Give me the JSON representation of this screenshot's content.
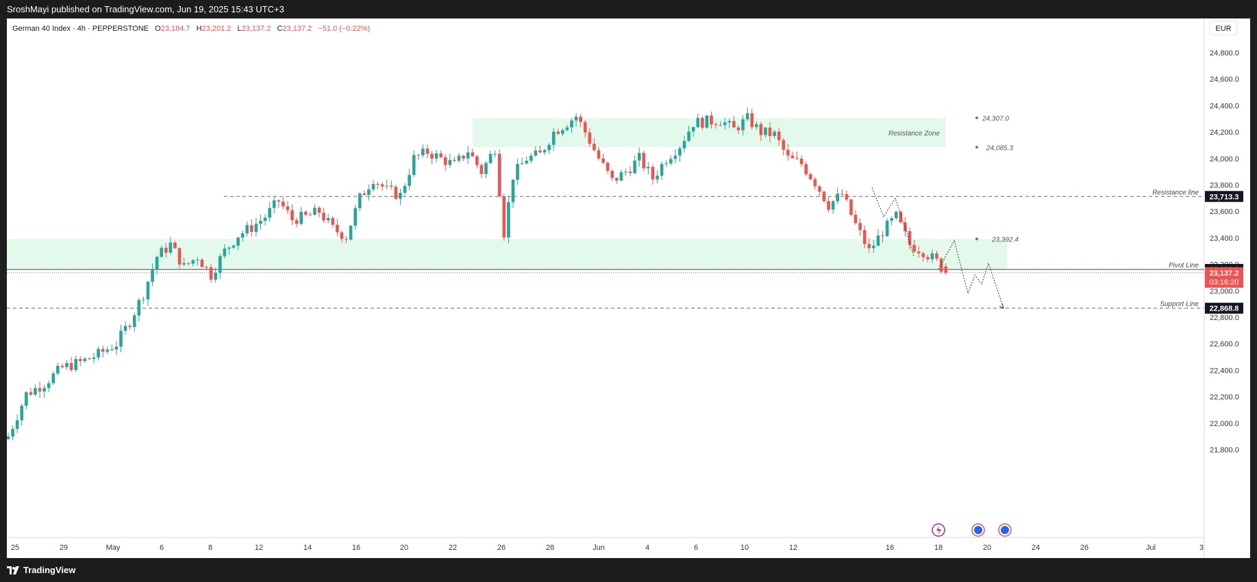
{
  "header": {
    "publisher": "SroshMayi published on TradingView.com, Jun 19, 2025 15:43 UTC+3"
  },
  "footer": {
    "brand": "TradingView"
  },
  "legend": {
    "symbol": "German 40 Index · 4h · PEPPERSTONE",
    "open_label": "O",
    "open": "23,184.7",
    "high_label": "H",
    "high": "23,201.2",
    "low_label": "L",
    "low": "23,137.2",
    "close_label": "C",
    "close": "23,137.2",
    "change": "−51.0 (−0.22%)"
  },
  "currency": "EUR",
  "colors": {
    "up": "#26a69a",
    "down": "#ef5350",
    "zone": "#e3f9ec",
    "axis_text": "#333333"
  },
  "chart_data": {
    "type": "candlestick",
    "ylim": [
      21750,
      24950
    ],
    "y_ticks": [
      "24,800.0",
      "24,600.0",
      "24,400.0",
      "24,200.0",
      "24,000.0",
      "23,800.0",
      "23,600.0",
      "23,400.0",
      "23,200.0",
      "23,000.0",
      "22,800.0",
      "22,600.0",
      "22,400.0",
      "22,200.0",
      "22,000.0",
      "21,800.0"
    ],
    "x_ticks": [
      "25",
      "29",
      "May",
      "6",
      "8",
      "12",
      "14",
      "16",
      "20",
      "22",
      "26",
      "28",
      "Jun",
      "4",
      "6",
      "10",
      "12",
      "16",
      "18",
      "20",
      "24",
      "26",
      "Jul",
      "3"
    ],
    "price_path": [
      [
        0,
        21900
      ],
      [
        4,
        22220
      ],
      [
        8,
        22300
      ],
      [
        12,
        22420
      ],
      [
        16,
        22460
      ],
      [
        20,
        22520
      ],
      [
        24,
        22600
      ],
      [
        27,
        22770
      ],
      [
        30,
        22980
      ],
      [
        33,
        23260
      ],
      [
        36,
        23350
      ],
      [
        39,
        23180
      ],
      [
        42,
        23260
      ],
      [
        45,
        23120
      ],
      [
        48,
        23300
      ],
      [
        51,
        23420
      ],
      [
        54,
        23480
      ],
      [
        57,
        23560
      ],
      [
        60,
        23680
      ],
      [
        63,
        23540
      ],
      [
        66,
        23560
      ],
      [
        69,
        23600
      ],
      [
        72,
        23470
      ],
      [
        75,
        23410
      ],
      [
        78,
        23700
      ],
      [
        81,
        23850
      ],
      [
        84,
        23760
      ],
      [
        87,
        23720
      ],
      [
        90,
        24000
      ],
      [
        93,
        24050
      ],
      [
        96,
        24000
      ],
      [
        99,
        23950
      ],
      [
        102,
        24060
      ],
      [
        105,
        23900
      ],
      [
        108,
        24080
      ],
      [
        110,
        23440
      ],
      [
        112,
        23870
      ],
      [
        115,
        24000
      ],
      [
        118,
        24030
      ],
      [
        121,
        24200
      ],
      [
        124,
        24270
      ],
      [
        126,
        24320
      ],
      [
        128,
        24200
      ],
      [
        131,
        24000
      ],
      [
        134,
        23830
      ],
      [
        137,
        23900
      ],
      [
        140,
        24000
      ],
      [
        143,
        23850
      ],
      [
        146,
        24000
      ],
      [
        149,
        24100
      ],
      [
        152,
        24270
      ],
      [
        155,
        24280
      ],
      [
        158,
        24290
      ],
      [
        161,
        24220
      ],
      [
        164,
        24300
      ],
      [
        167,
        24200
      ],
      [
        170,
        24180
      ],
      [
        173,
        24000
      ],
      [
        176,
        23960
      ],
      [
        179,
        23820
      ],
      [
        182,
        23650
      ],
      [
        185,
        23730
      ],
      [
        188,
        23500
      ],
      [
        191,
        23300
      ],
      [
        194,
        23450
      ],
      [
        197,
        23560
      ],
      [
        200,
        23350
      ],
      [
        203,
        23300
      ],
      [
        206,
        23220
      ],
      [
        208,
        23137.2
      ]
    ],
    "projection": [
      [
        23400,
        0
      ],
      [
        23380,
        0
      ],
      [
        23250,
        0
      ]
    ],
    "levels": [
      {
        "label": "Resistance line",
        "value": 23713.3,
        "tag": "23,713.3"
      },
      {
        "label": "Pivot Line",
        "value": 23162.0,
        "tag": "23,162.0"
      },
      {
        "label": "Support Line",
        "value": 22868.8,
        "tag": "22,868.8"
      }
    ],
    "last_price": {
      "tag": "23,137.2",
      "countdown": "03:16:20"
    },
    "zones": [
      {
        "label": "Resistance Zone",
        "top": 24307.0,
        "bottom": 24085.3,
        "top_label": "24,307.0",
        "bottom_label": "24,085.3"
      },
      {
        "label": "",
        "top": 23392.4,
        "bottom": 23162.0,
        "top_label": "23,392.4",
        "bottom_label": ""
      }
    ],
    "forecast_path": [
      23162.0,
      23380,
      22980,
      23120,
      23050,
      23210,
      22868.8
    ]
  }
}
